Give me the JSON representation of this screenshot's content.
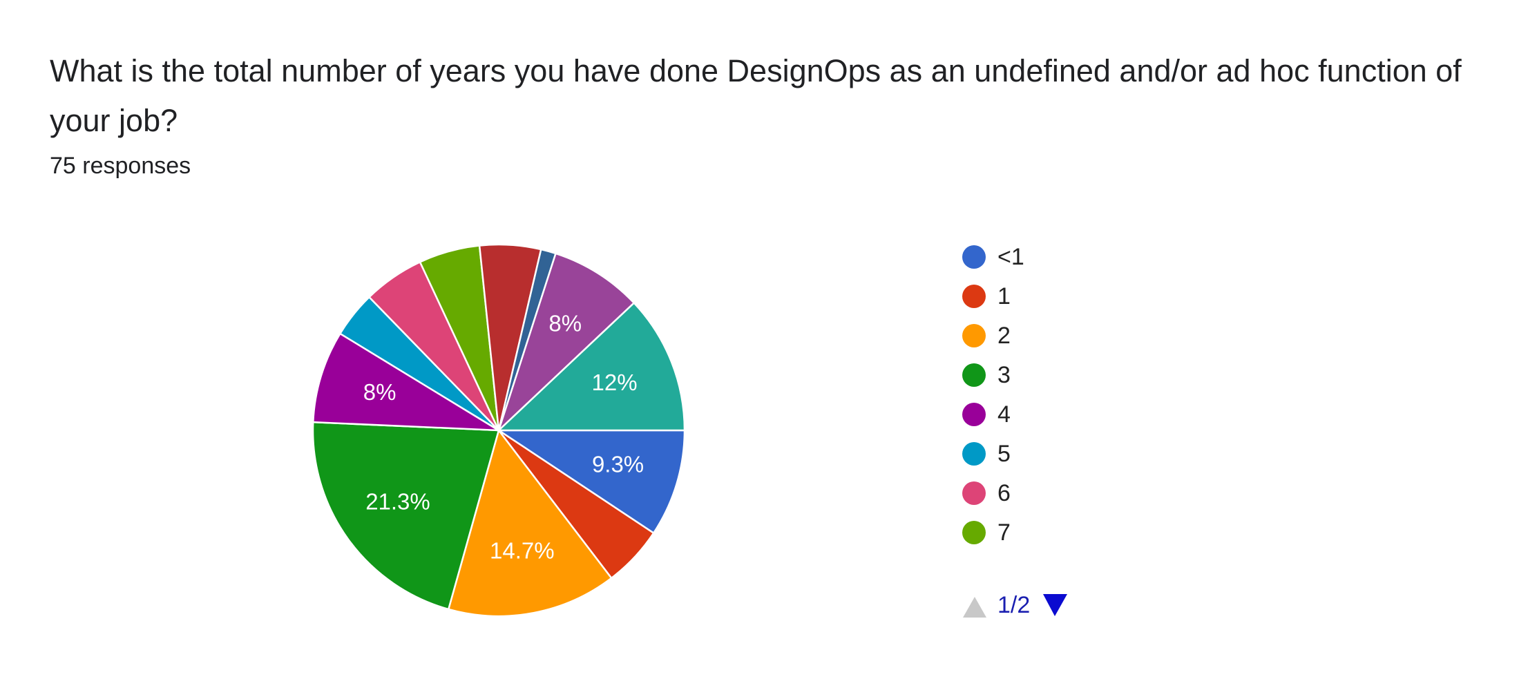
{
  "chart_data": {
    "type": "pie",
    "title": "What is the total number of years you have done DesignOps as an undefined and/or ad hoc function of your job?",
    "subtitle": "75 responses",
    "categories": [
      "<1",
      "1",
      "2",
      "3",
      "4",
      "5",
      "6",
      "7",
      null,
      null,
      null,
      null
    ],
    "values": [
      9.3,
      5.3,
      14.7,
      21.3,
      8,
      4,
      5.3,
      5.3,
      5.3,
      1.3,
      8,
      12
    ],
    "value_labels": [
      "9.3%",
      null,
      "14.7%",
      "21.3%",
      "8%",
      null,
      null,
      null,
      null,
      null,
      "8%",
      "12%"
    ],
    "colors": [
      "#3366cc",
      "#dc3912",
      "#ff9900",
      "#109618",
      "#990099",
      "#0099c6",
      "#dd4477",
      "#66aa00",
      "#b82e2e",
      "#316395",
      "#994499",
      "#22aa99"
    ],
    "legend_page": "1/2"
  }
}
